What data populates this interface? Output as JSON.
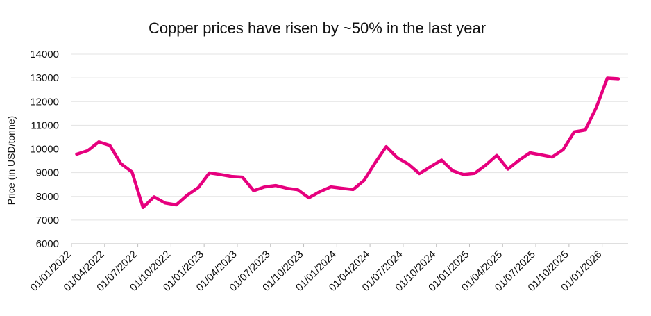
{
  "chart_data": {
    "type": "line",
    "title": "Copper prices have risen by ~50% in the last year",
    "xlabel": "",
    "ylabel": "Price (in USD/tonne)",
    "ylim": [
      6000,
      14000
    ],
    "yticks": [
      6000,
      7000,
      8000,
      9000,
      10000,
      11000,
      12000,
      13000,
      14000
    ],
    "xtick_labels": [
      "01/01/2022",
      "01/04/2022",
      "01/07/2022",
      "01/10/2022",
      "01/01/2023",
      "01/04/2023",
      "01/07/2023",
      "01/10/2023",
      "01/01/2024",
      "01/04/2024",
      "01/07/2024",
      "01/10/2024",
      "01/01/2025",
      "01/04/2025",
      "01/07/2025",
      "01/10/2025",
      "01/01/2026"
    ],
    "grid": true,
    "legend": "none",
    "line_color": "#e6007e",
    "series": [
      {
        "x": [
          "2022-01",
          "2022-02",
          "2022-03",
          "2022-04",
          "2022-05",
          "2022-06",
          "2022-07",
          "2022-08",
          "2022-09",
          "2022-10",
          "2022-11",
          "2022-12",
          "2023-01",
          "2023-02",
          "2023-03",
          "2023-04",
          "2023-05",
          "2023-06",
          "2023-07",
          "2023-08",
          "2023-09",
          "2023-10",
          "2023-11",
          "2023-12",
          "2024-01",
          "2024-02",
          "2024-03",
          "2024-04",
          "2024-05",
          "2024-06",
          "2024-07",
          "2024-08",
          "2024-09",
          "2024-10",
          "2024-11",
          "2024-12",
          "2025-01",
          "2025-02",
          "2025-03",
          "2025-04",
          "2025-05",
          "2025-06",
          "2025-07",
          "2025-08",
          "2025-09",
          "2025-10",
          "2025-11",
          "2025-12",
          "2026-01",
          "2026-02"
        ],
        "values": [
          9780,
          9930,
          10300,
          10150,
          9380,
          9030,
          7530,
          7980,
          7720,
          7640,
          8050,
          8370,
          8990,
          8920,
          8840,
          8810,
          8240,
          8400,
          8460,
          8340,
          8280,
          7940,
          8200,
          8400,
          8340,
          8290,
          8680,
          9420,
          10100,
          9630,
          9360,
          8960,
          9250,
          9530,
          9080,
          8920,
          8970,
          9320,
          9730,
          9150,
          9520,
          9840,
          9750,
          9660,
          9970,
          10720,
          10800,
          11750,
          12990,
          12960
        ]
      }
    ]
  }
}
